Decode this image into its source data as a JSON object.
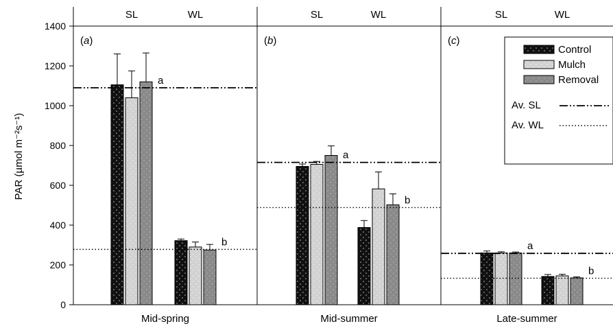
{
  "chart_data": [
    {
      "type": "bar",
      "panel": "(a)",
      "xlabel": "Mid-spring",
      "ylabel": "PAR (µmol m⁻²s⁻¹)",
      "ylim": [
        0,
        1400
      ],
      "yticks": [
        0,
        200,
        400,
        600,
        800,
        1000,
        1200,
        1400
      ],
      "groups": [
        "SL",
        "WL"
      ],
      "series": [
        {
          "name": "Control",
          "values": [
            1105,
            322
          ],
          "errors": [
            155,
            8
          ]
        },
        {
          "name": "Mulch",
          "values": [
            1040,
            290
          ],
          "errors": [
            135,
            25
          ]
        },
        {
          "name": "Removal",
          "values": [
            1120,
            275
          ],
          "errors": [
            145,
            28
          ]
        }
      ],
      "reference_lines": [
        {
          "name": "Av. SL",
          "value": 1090,
          "letter": "a"
        },
        {
          "name": "Av. WL",
          "value": 278,
          "letter": "b"
        }
      ]
    },
    {
      "type": "bar",
      "panel": "(b)",
      "xlabel": "Mid-summer",
      "ylim": [
        0,
        1400
      ],
      "groups": [
        "SL",
        "WL"
      ],
      "series": [
        {
          "name": "Control",
          "values": [
            695,
            388
          ],
          "errors": [
            12,
            35
          ]
        },
        {
          "name": "Mulch",
          "values": [
            705,
            582
          ],
          "errors": [
            15,
            85
          ]
        },
        {
          "name": "Removal",
          "values": [
            750,
            502
          ],
          "errors": [
            48,
            55
          ]
        }
      ],
      "reference_lines": [
        {
          "name": "Av. SL",
          "value": 715,
          "letter": "a"
        },
        {
          "name": "Av. WL",
          "value": 488,
          "letter": "b"
        }
      ]
    },
    {
      "type": "bar",
      "panel": "(c)",
      "xlabel": "Late-summer",
      "ylim": [
        0,
        1400
      ],
      "groups": [
        "SL",
        "WL"
      ],
      "series": [
        {
          "name": "Control",
          "values": [
            260,
            142
          ],
          "errors": [
            10,
            10
          ]
        },
        {
          "name": "Mulch",
          "values": [
            260,
            145
          ],
          "errors": [
            6,
            8
          ]
        },
        {
          "name": "Removal",
          "values": [
            260,
            135
          ],
          "errors": [
            5,
            5
          ]
        }
      ],
      "reference_lines": [
        {
          "name": "Av. SL",
          "value": 258,
          "letter": "a"
        },
        {
          "name": "Av. WL",
          "value": 133,
          "letter": "b"
        }
      ]
    }
  ],
  "legend": {
    "items": [
      {
        "label": "Control",
        "color": "#111111"
      },
      {
        "label": "Mulch",
        "color": "#d2d2d2"
      },
      {
        "label": "Removal",
        "color": "#8a8a8a"
      }
    ],
    "lines": [
      {
        "label": "Av. SL",
        "style": "dash-dot-dot"
      },
      {
        "label": "Av. WL",
        "style": "dotted"
      }
    ],
    "placement": "top-right of panel (c)"
  },
  "colors": {
    "control": "#111111",
    "mulch": "#d2d2d2",
    "removal": "#8a8a8a"
  }
}
